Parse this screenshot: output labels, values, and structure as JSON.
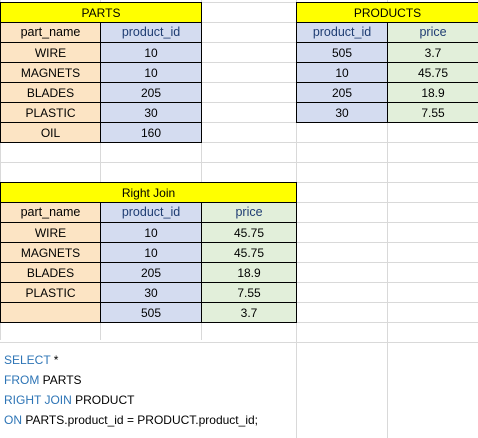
{
  "parts": {
    "title": "PARTS",
    "headers": [
      "part_name",
      "product_id"
    ],
    "rows": [
      [
        "WIRE",
        "10"
      ],
      [
        "MAGNETS",
        "10"
      ],
      [
        "BLADES",
        "205"
      ],
      [
        "PLASTIC",
        "30"
      ],
      [
        "OIL",
        "160"
      ]
    ]
  },
  "products": {
    "title": "PRODUCTS",
    "headers": [
      "product_id",
      "price"
    ],
    "rows": [
      [
        "505",
        "3.7"
      ],
      [
        "10",
        "45.75"
      ],
      [
        "205",
        "18.9"
      ],
      [
        "30",
        "7.55"
      ]
    ]
  },
  "right_join": {
    "title": "Right Join",
    "headers": [
      "part_name",
      "product_id",
      "price"
    ],
    "rows": [
      [
        "WIRE",
        "10",
        "45.75"
      ],
      [
        "MAGNETS",
        "10",
        "45.75"
      ],
      [
        "BLADES",
        "205",
        "18.9"
      ],
      [
        "PLASTIC",
        "30",
        "7.55"
      ],
      [
        "",
        "505",
        "3.7"
      ]
    ]
  },
  "sql": {
    "line1_kw": "SELECT",
    "line1_rest": " *",
    "line2_kw": "FROM",
    "line2_rest": " PARTS",
    "line3_kw": "RIGHT JOIN",
    "line3_rest": " PRODUCT",
    "line4_kw": "ON",
    "line4_rest": " PARTS.product_id = PRODUCT.product_id;"
  },
  "colors": {
    "title": "#ffff00",
    "part_name": "#fce4c4",
    "product_id": "#d4dcf0",
    "price": "#e2efda",
    "keyword": "#2e75b6",
    "gridline": "#d9d9d9"
  }
}
